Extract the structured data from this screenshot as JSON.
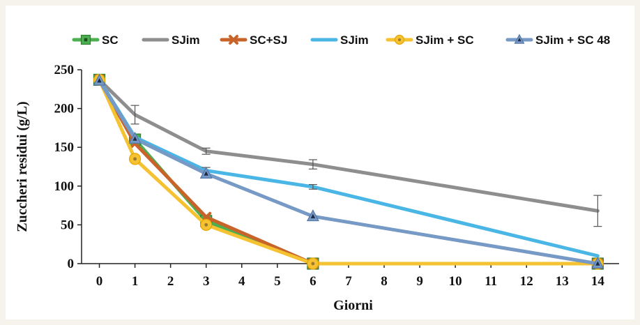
{
  "chart_data": {
    "type": "line",
    "title": "",
    "xlabel": "Giorni",
    "ylabel": "Zuccheri residui (g/L)",
    "x_ticks": [
      0,
      1,
      2,
      3,
      4,
      5,
      6,
      7,
      8,
      9,
      10,
      11,
      12,
      13,
      14
    ],
    "x_tick_labels": [
      "0",
      "1",
      "2",
      "3",
      "4",
      "5",
      "6",
      "7",
      "8",
      "9",
      "10",
      "11",
      "12",
      "13",
      "14"
    ],
    "y_ticks": [
      0,
      50,
      100,
      150,
      200,
      250
    ],
    "xlim": [
      -0.5,
      14.6
    ],
    "ylim": [
      0,
      250
    ],
    "grid": false,
    "legend_position": "top",
    "series": [
      {
        "name": "SC",
        "color": "#4caf50",
        "marker": "square",
        "x": [
          0,
          1,
          3,
          6,
          14
        ],
        "y": [
          237,
          160,
          55,
          0,
          0
        ]
      },
      {
        "name": "SJim",
        "color": "#8e8e8e",
        "marker": "none",
        "x": [
          0,
          1,
          3,
          6,
          14
        ],
        "y": [
          237,
          192,
          145,
          128,
          68
        ],
        "error": [
          0,
          12,
          4,
          6,
          20
        ]
      },
      {
        "name": "SC+SJ",
        "color": "#c8642a",
        "marker": "x",
        "x": [
          0,
          1,
          3,
          6,
          14
        ],
        "y": [
          237,
          155,
          60,
          0,
          0
        ]
      },
      {
        "name": "SJim",
        "color": "#49b6e6",
        "marker": "none",
        "x": [
          0,
          1,
          3,
          6,
          14
        ],
        "y": [
          237,
          163,
          120,
          99,
          10
        ],
        "error": [
          0,
          0,
          4,
          3,
          0
        ]
      },
      {
        "name": "SJim + SC",
        "color": "#f5c232",
        "marker": "circle",
        "x": [
          0,
          1,
          3,
          6,
          14
        ],
        "y": [
          237,
          135,
          50,
          0,
          0
        ]
      },
      {
        "name": "SJim + SC 48",
        "color": "#7699c5",
        "marker": "triangle",
        "x": [
          0,
          1,
          3,
          6,
          14
        ],
        "y": [
          236,
          161,
          116,
          61,
          0
        ]
      }
    ]
  }
}
